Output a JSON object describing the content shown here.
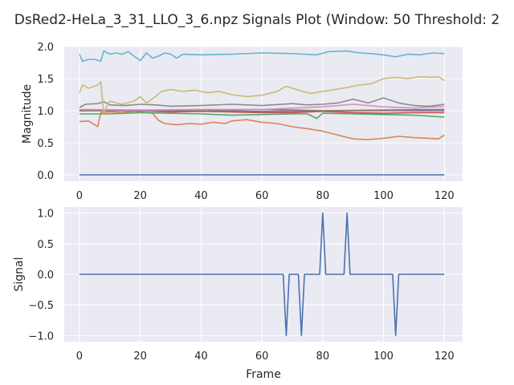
{
  "chart_data": {
    "title": "DsRed2-HeLa_3_31_LLO_3_6.npz Signals Plot (Window: 50 Threshold: 2",
    "xlabel": "Frame",
    "grid": true,
    "colors": [
      "#4c72b0",
      "#dd8452",
      "#55a868",
      "#c44e52",
      "#8172b3",
      "#937860",
      "#da8bc3",
      "#8c8c8c",
      "#ccb974",
      "#64b5cd"
    ],
    "panels": [
      {
        "type": "line",
        "ylabel": "Magnitude",
        "xlim": [
          -5,
          126
        ],
        "ylim": [
          -0.1,
          2.0
        ],
        "xticks": [
          0,
          20,
          40,
          60,
          80,
          100,
          120
        ],
        "yticks": [
          "0.0",
          "0.5",
          "1.0",
          "1.5",
          "2.0"
        ],
        "series": [
          {
            "color": "#4c72b0",
            "points": [
              [
                0,
                0.0
              ],
              [
                120,
                0.0
              ]
            ]
          },
          {
            "color": "#dd8452",
            "points": [
              [
                0,
                0.83
              ],
              [
                3,
                0.84
              ],
              [
                5,
                0.78
              ],
              [
                6,
                0.75
              ],
              [
                7,
                0.97
              ],
              [
                10,
                0.98
              ],
              [
                14,
                0.97
              ],
              [
                18,
                0.99
              ],
              [
                20,
                0.98
              ],
              [
                24,
                0.96
              ],
              [
                26,
                0.85
              ],
              [
                28,
                0.8
              ],
              [
                32,
                0.78
              ],
              [
                36,
                0.8
              ],
              [
                40,
                0.79
              ],
              [
                44,
                0.82
              ],
              [
                48,
                0.8
              ],
              [
                50,
                0.84
              ],
              [
                55,
                0.86
              ],
              [
                60,
                0.82
              ],
              [
                65,
                0.8
              ],
              [
                70,
                0.75
              ],
              [
                75,
                0.72
              ],
              [
                80,
                0.68
              ],
              [
                85,
                0.62
              ],
              [
                90,
                0.56
              ],
              [
                95,
                0.55
              ],
              [
                100,
                0.57
              ],
              [
                105,
                0.6
              ],
              [
                110,
                0.58
              ],
              [
                115,
                0.57
              ],
              [
                118,
                0.56
              ],
              [
                120,
                0.62
              ]
            ]
          },
          {
            "color": "#55a868",
            "points": [
              [
                0,
                0.95
              ],
              [
                10,
                0.95
              ],
              [
                20,
                0.97
              ],
              [
                30,
                0.96
              ],
              [
                40,
                0.95
              ],
              [
                50,
                0.93
              ],
              [
                60,
                0.94
              ],
              [
                70,
                0.95
              ],
              [
                75,
                0.95
              ],
              [
                78,
                0.88
              ],
              [
                80,
                0.96
              ],
              [
                90,
                0.95
              ],
              [
                100,
                0.94
              ],
              [
                110,
                0.93
              ],
              [
                120,
                0.9
              ]
            ]
          },
          {
            "color": "#c44e52",
            "points": [
              [
                0,
                1.0
              ],
              [
                20,
                1.0
              ],
              [
                30,
                0.98
              ],
              [
                40,
                0.99
              ],
              [
                60,
                0.97
              ],
              [
                70,
                0.97
              ],
              [
                80,
                0.99
              ],
              [
                90,
                0.97
              ],
              [
                100,
                0.96
              ],
              [
                110,
                0.97
              ],
              [
                120,
                0.97
              ]
            ]
          },
          {
            "color": "#8172b3",
            "points": [
              [
                0,
                1.0
              ],
              [
                30,
                1.0
              ],
              [
                60,
                0.99
              ],
              [
                90,
                1.0
              ],
              [
                120,
                1.0
              ]
            ]
          },
          {
            "color": "#937860",
            "points": [
              [
                0,
                1.0
              ],
              [
                20,
                1.01
              ],
              [
                40,
                1.0
              ],
              [
                60,
                1.02
              ],
              [
                80,
                1.0
              ],
              [
                100,
                1.01
              ],
              [
                120,
                1.02
              ]
            ]
          },
          {
            "color": "#da8bc3",
            "points": [
              [
                0,
                1.02
              ],
              [
                20,
                1.01
              ],
              [
                40,
                1.02
              ],
              [
                60,
                1.02
              ],
              [
                70,
                1.04
              ],
              [
                80,
                1.06
              ],
              [
                90,
                1.1
              ],
              [
                100,
                1.06
              ],
              [
                110,
                1.04
              ],
              [
                120,
                1.07
              ]
            ]
          },
          {
            "color": "#8c8c8c",
            "points": [
              [
                0,
                1.05
              ],
              [
                2,
                1.1
              ],
              [
                6,
                1.11
              ],
              [
                8,
                1.14
              ],
              [
                10,
                1.09
              ],
              [
                15,
                1.08
              ],
              [
                20,
                1.1
              ],
              [
                25,
                1.09
              ],
              [
                30,
                1.07
              ],
              [
                40,
                1.08
              ],
              [
                50,
                1.1
              ],
              [
                60,
                1.08
              ],
              [
                70,
                1.11
              ],
              [
                75,
                1.09
              ],
              [
                80,
                1.1
              ],
              [
                85,
                1.12
              ],
              [
                90,
                1.18
              ],
              [
                95,
                1.12
              ],
              [
                100,
                1.2
              ],
              [
                105,
                1.12
              ],
              [
                110,
                1.08
              ],
              [
                115,
                1.07
              ],
              [
                120,
                1.1
              ]
            ]
          },
          {
            "color": "#ccb974",
            "points": [
              [
                0,
                1.28
              ],
              [
                1,
                1.4
              ],
              [
                3,
                1.35
              ],
              [
                6,
                1.4
              ],
              [
                7,
                1.45
              ],
              [
                8,
                0.97
              ],
              [
                10,
                1.15
              ],
              [
                14,
                1.1
              ],
              [
                18,
                1.15
              ],
              [
                20,
                1.22
              ],
              [
                22,
                1.12
              ],
              [
                25,
                1.22
              ],
              [
                27,
                1.3
              ],
              [
                30,
                1.33
              ],
              [
                34,
                1.3
              ],
              [
                38,
                1.32
              ],
              [
                42,
                1.28
              ],
              [
                46,
                1.3
              ],
              [
                50,
                1.25
              ],
              [
                55,
                1.22
              ],
              [
                60,
                1.24
              ],
              [
                65,
                1.3
              ],
              [
                68,
                1.38
              ],
              [
                72,
                1.32
              ],
              [
                76,
                1.27
              ],
              [
                80,
                1.3
              ],
              [
                84,
                1.33
              ],
              [
                88,
                1.36
              ],
              [
                92,
                1.4
              ],
              [
                96,
                1.42
              ],
              [
                100,
                1.5
              ],
              [
                104,
                1.52
              ],
              [
                108,
                1.5
              ],
              [
                112,
                1.53
              ],
              [
                116,
                1.52
              ],
              [
                118,
                1.53
              ],
              [
                120,
                1.47
              ]
            ]
          },
          {
            "color": "#64b5cd",
            "points": [
              [
                0,
                1.88
              ],
              [
                1,
                1.77
              ],
              [
                3,
                1.8
              ],
              [
                5,
                1.8
              ],
              [
                7,
                1.77
              ],
              [
                8,
                1.93
              ],
              [
                10,
                1.88
              ],
              [
                12,
                1.9
              ],
              [
                14,
                1.88
              ],
              [
                16,
                1.92
              ],
              [
                18,
                1.85
              ],
              [
                20,
                1.78
              ],
              [
                22,
                1.9
              ],
              [
                24,
                1.82
              ],
              [
                26,
                1.85
              ],
              [
                28,
                1.9
              ],
              [
                30,
                1.88
              ],
              [
                32,
                1.82
              ],
              [
                34,
                1.88
              ],
              [
                40,
                1.87
              ],
              [
                50,
                1.88
              ],
              [
                60,
                1.9
              ],
              [
                70,
                1.89
              ],
              [
                78,
                1.87
              ],
              [
                82,
                1.92
              ],
              [
                88,
                1.93
              ],
              [
                92,
                1.9
              ],
              [
                96,
                1.89
              ],
              [
                100,
                1.87
              ],
              [
                104,
                1.84
              ],
              [
                108,
                1.88
              ],
              [
                112,
                1.87
              ],
              [
                116,
                1.9
              ],
              [
                120,
                1.89
              ]
            ]
          }
        ]
      },
      {
        "type": "line",
        "ylabel": "Signal",
        "xlim": [
          -5,
          126
        ],
        "ylim": [
          -1.1,
          1.1
        ],
        "xticks": [
          0,
          20,
          40,
          60,
          80,
          100,
          120
        ],
        "yticks": [
          "−1.0",
          "−0.5",
          "0.0",
          "0.5",
          "1.0"
        ],
        "series": [
          {
            "color": "#4c72b0",
            "points": [
              [
                0,
                0
              ],
              [
                67,
                0
              ],
              [
                68,
                -1
              ],
              [
                69,
                0
              ],
              [
                72,
                0
              ],
              [
                73,
                -1
              ],
              [
                74,
                0
              ],
              [
                79,
                0
              ],
              [
                80,
                1
              ],
              [
                81,
                0
              ],
              [
                87,
                0
              ],
              [
                88,
                1
              ],
              [
                89,
                0
              ],
              [
                103,
                0
              ],
              [
                104,
                -1
              ],
              [
                105,
                0
              ],
              [
                120,
                0
              ]
            ]
          }
        ]
      }
    ]
  }
}
